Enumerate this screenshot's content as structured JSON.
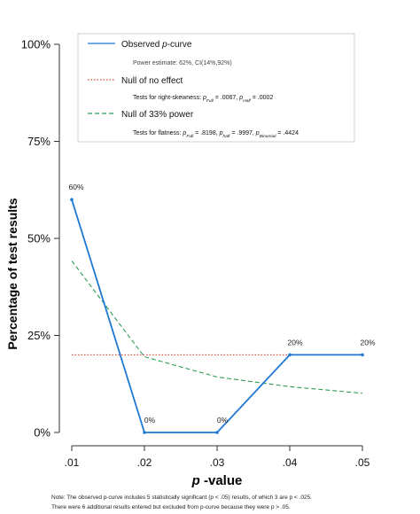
{
  "chart_data": {
    "type": "line",
    "ylabel": "Percentage of test results",
    "xlabel": "p -value",
    "xlabel_italic_part": "p",
    "xlabel_rest": " -value",
    "x_ticks": [
      ".01",
      ".02",
      ".03",
      ".04",
      ".05"
    ],
    "x": [
      0.01,
      0.02,
      0.03,
      0.04,
      0.05
    ],
    "xlim": [
      0.01,
      0.05
    ],
    "ylim": [
      0,
      100
    ],
    "y_ticks": [
      "0%",
      "25%",
      "50%",
      "75%",
      "100%"
    ],
    "y_tick_values": [
      0,
      25,
      50,
      75,
      100
    ],
    "grid": false,
    "legend_position": "top-center",
    "series": [
      {
        "name": "Observed p-curve",
        "color": "#1f78d4",
        "style": "solid",
        "values": [
          60,
          0,
          0,
          20,
          20
        ],
        "point_labels": [
          "60%",
          "0%",
          "0%",
          "20%",
          "20%"
        ]
      },
      {
        "name": "Null of no effect",
        "color": "#e8422e",
        "style": "dotted",
        "values": [
          20,
          20,
          20,
          20,
          20
        ]
      },
      {
        "name": "Null of 33% power",
        "color": "#2e9e57",
        "style": "dashed",
        "values": [
          44.2,
          19.5,
          14.3,
          11.8,
          10.1
        ]
      }
    ],
    "legend": [
      {
        "label": "Observed p-curve",
        "detail": "Power estimate: 62%, CI(14%,92%)"
      },
      {
        "label": "Null of no effect",
        "detail": "Tests for right-skewness: pFull = .0067, pHalf = .0002"
      },
      {
        "label": "Null of 33% power",
        "detail": "Tests for flatness: pFull = .8198, pHalf = .9997, pBinomial = .4424"
      }
    ]
  },
  "footnote": {
    "line1": "Note: The observed p-curve includes 5 statistically significant (p < .05) results, of which 3 are p < .025.",
    "line2": "There were 6 additional results entered but excluded from p-curve because they were p > .05."
  }
}
